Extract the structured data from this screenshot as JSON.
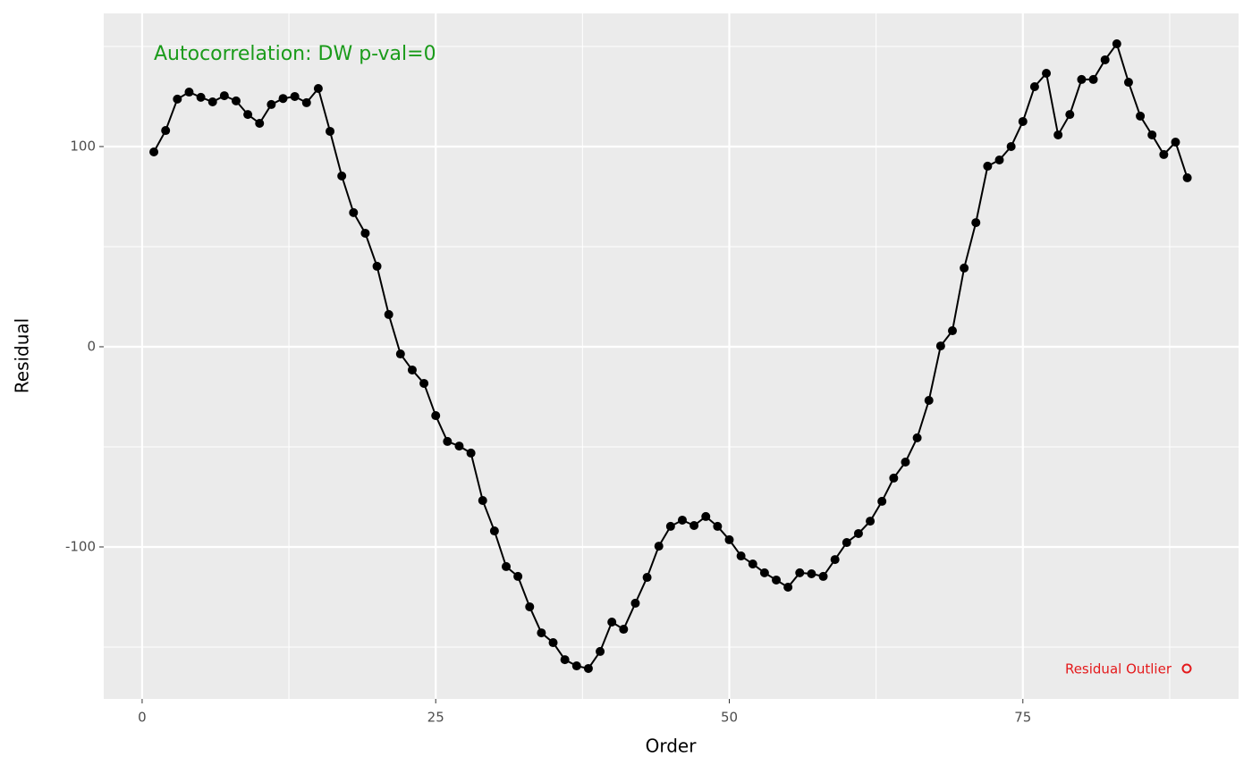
{
  "chart_data": {
    "type": "line",
    "annotation": "Autocorrelation: DW p-val=0",
    "annotation_color": "#1a9b1a",
    "xlabel": "Order",
    "ylabel": "Residual",
    "x": [
      1,
      2,
      3,
      4,
      5,
      6,
      7,
      8,
      9,
      10,
      11,
      12,
      13,
      14,
      15,
      16,
      17,
      18,
      19,
      20,
      21,
      22,
      23,
      24,
      25,
      26,
      27,
      28,
      29,
      30,
      31,
      32,
      33,
      34,
      35,
      36,
      37,
      38,
      39,
      40,
      41,
      42,
      43,
      44,
      45,
      46,
      47,
      48,
      49,
      50,
      51,
      52,
      53,
      54,
      55,
      56,
      57,
      58,
      59,
      60,
      61,
      62,
      63,
      64,
      65,
      66,
      67,
      68,
      69,
      70,
      71,
      72,
      73,
      74,
      75,
      76,
      77,
      78,
      79,
      80,
      81,
      82,
      83,
      84,
      85,
      86,
      87,
      88,
      89
    ],
    "series": [
      {
        "color": "#000000",
        "values": [
          97.3,
          108,
          123.7,
          127.2,
          124.6,
          122.3,
          125.4,
          122.8,
          116,
          111.6,
          121,
          124,
          125,
          121.9,
          129,
          107.6,
          85.3,
          67,
          56.7,
          40.2,
          16.1,
          -3.6,
          -11.6,
          -18.3,
          -34.4,
          -47.3,
          -49.6,
          -53.1,
          -76.8,
          -92,
          -109.8,
          -114.7,
          -129.9,
          -142.9,
          -147.8,
          -156.3,
          -159.4,
          -160.7,
          -152.2,
          -137.5,
          -141.1,
          -128.1,
          -115.2,
          -99.6,
          -89.7,
          -86.6,
          -89.3,
          -84.8,
          -89.7,
          -96.4,
          -104.5,
          -108.5,
          -112.9,
          -116.5,
          -120.1,
          -112.9,
          -113.4,
          -114.7,
          -106.3,
          -97.8,
          -93.3,
          -87.1,
          -77.2,
          -65.6,
          -57.6,
          -45.5,
          -26.8,
          0.4,
          8,
          39.3,
          62,
          90.2,
          93.3,
          100,
          112.5,
          129.9,
          136.6,
          105.8,
          116,
          133.5,
          133.5,
          143.3,
          151.3,
          132.1,
          115.2,
          105.8,
          96,
          102.2,
          84.4
        ]
      }
    ],
    "legend": {
      "label": "Residual Outlier",
      "color": "#e41a1c"
    },
    "xlim": [
      -3.27,
      93.37
    ],
    "ylim": [
      -175.9,
      166.5
    ],
    "xticks": [
      0,
      25,
      50,
      75
    ],
    "yticks": [
      -100,
      0,
      100
    ],
    "xminor": [
      12.5,
      37.5,
      62.5,
      87.5
    ],
    "yminor": [
      -150,
      -50,
      50,
      150
    ],
    "grid": true
  }
}
